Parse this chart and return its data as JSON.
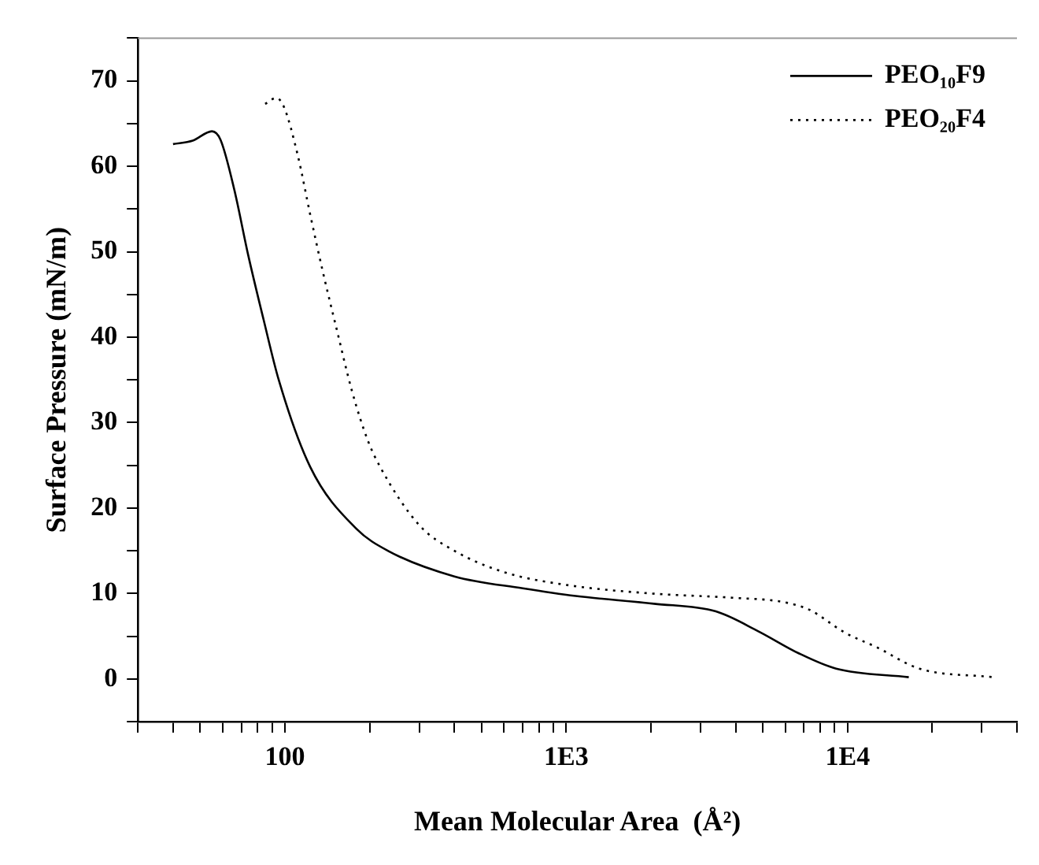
{
  "chart_data": {
    "type": "line",
    "xlabel": "Mean Molecular Area  (Å²)",
    "ylabel": "Surface Pressure (mN/m)",
    "log": "x",
    "grid": false,
    "legend": "top right",
    "marker": "none",
    "xlim": [
      30,
      40000
    ],
    "xticks": [
      {
        "value": 30,
        "label": null
      },
      {
        "value": 40,
        "label": null
      },
      {
        "value": 50,
        "label": null
      },
      {
        "value": 60,
        "label": null
      },
      {
        "value": 70,
        "label": null
      },
      {
        "value": 80,
        "label": null
      },
      {
        "value": 90,
        "label": null
      },
      100,
      {
        "value": 200,
        "label": null
      },
      {
        "value": 300,
        "label": null
      },
      {
        "value": 400,
        "label": null
      },
      {
        "value": 500,
        "label": null
      },
      {
        "value": 600,
        "label": null
      },
      {
        "value": 700,
        "label": null
      },
      {
        "value": 800,
        "label": null
      },
      {
        "value": 900,
        "label": null
      },
      {
        "value": 1000,
        "label": "1E3"
      },
      {
        "value": 2000,
        "label": null
      },
      {
        "value": 3000,
        "label": null
      },
      {
        "value": 4000,
        "label": null
      },
      {
        "value": 5000,
        "label": null
      },
      {
        "value": 6000,
        "label": null
      },
      {
        "value": 7000,
        "label": null
      },
      {
        "value": 8000,
        "label": null
      },
      {
        "value": 9000,
        "label": null
      },
      {
        "value": 10000,
        "label": "1E4"
      },
      {
        "value": 20000,
        "label": null
      },
      {
        "value": 30000,
        "label": null
      },
      {
        "value": 40000,
        "label": null
      }
    ],
    "ylim": [
      -5,
      75
    ],
    "yticks": [
      {
        "value": -5,
        "label": null
      },
      0,
      {
        "value": 5,
        "label": null
      },
      10,
      {
        "value": 15,
        "label": null
      },
      20,
      {
        "value": 25,
        "label": null
      },
      30,
      {
        "value": 35,
        "label": null
      },
      40,
      {
        "value": 45,
        "label": null
      },
      50,
      {
        "value": 55,
        "label": null
      },
      60,
      {
        "value": 65,
        "label": null
      },
      70,
      {
        "value": 75,
        "label": null
      }
    ],
    "series": [
      {
        "name": "PEO₁₀F9",
        "color": "#000000",
        "line_style": "solid",
        "x": [
          40,
          47,
          55,
          59,
          66,
          74,
          84,
          95,
          123,
          179,
          232,
          400,
          700,
          1080,
          2050,
          3400,
          4800,
          6700,
          9100,
          16500
        ],
        "values": [
          62.6,
          63,
          64.1,
          63.1,
          57.3,
          49.6,
          42,
          35,
          24.8,
          17.6,
          15,
          12,
          10.6,
          9.7,
          8.8,
          7.9,
          5.6,
          3,
          1.2,
          0.2
        ]
      },
      {
        "name": "PEO₂₀F4",
        "color": "#000000",
        "line_style": "dotted",
        "x": [
          85,
          93,
          99,
          111,
          123,
          136,
          153,
          173,
          197,
          218,
          300,
          400,
          600,
          1000,
          2000,
          3900,
          5900,
          7300,
          9800,
          12700,
          18000,
          33000
        ],
        "values": [
          67.3,
          68,
          67,
          61.3,
          54.3,
          47.8,
          40.8,
          33.7,
          27.9,
          24.8,
          18,
          15,
          12.5,
          11,
          10,
          9.5,
          9,
          8.1,
          5.4,
          3.7,
          1.2,
          0.2
        ]
      }
    ]
  }
}
